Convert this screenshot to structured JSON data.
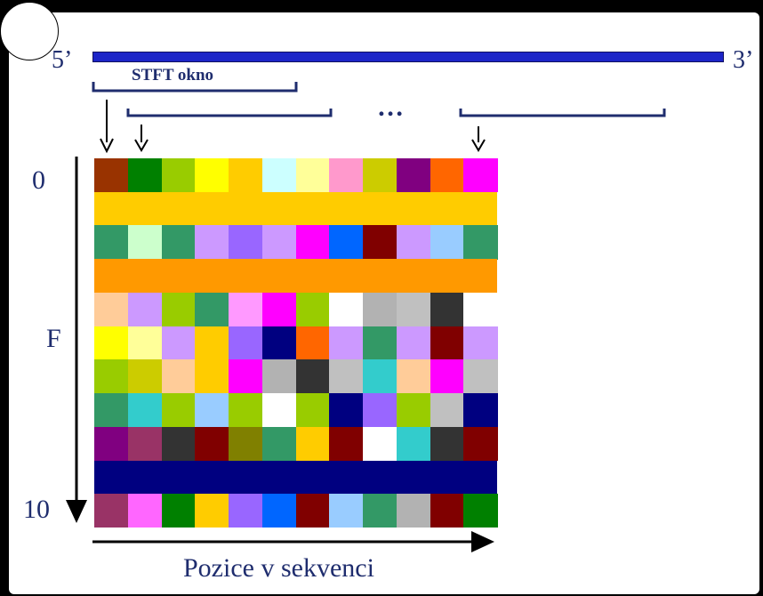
{
  "labels": {
    "five_prime": "5’",
    "three_prime": "3’",
    "stft_window": "STFT okno",
    "ellipsis": "…",
    "freq_start": "0",
    "freq_axis": "F",
    "freq_end": "10",
    "position_axis": "Pozice v sekvenci"
  },
  "colors": {
    "sequence_bar": "#1c25c8",
    "text": "#1f2d6e",
    "arrow": "#000000",
    "background": "#000000",
    "panel": "#ffffff"
  },
  "grid": {
    "columns": 12,
    "rows": [
      {
        "cells": [
          "#993300",
          "#008000",
          "#99cc00",
          "#ffff00",
          "#ffcc00",
          "#ccffff",
          "#ffff99",
          "#ff99cc",
          "#cccc00",
          "#800080",
          "#ff6600",
          "#ff00ff"
        ]
      },
      {
        "merged": "#ffcc00"
      },
      {
        "cells": [
          "#339966",
          "#ccffcc",
          "#339966",
          "#cc99ff",
          "#9966ff",
          "#cc99ff",
          "#ff00ff",
          "#0066ff",
          "#800000",
          "#cc99ff",
          "#99ccff",
          "#339966"
        ]
      },
      {
        "merged": "#ff9900"
      },
      {
        "cells": [
          "#ffcc99",
          "#cc99ff",
          "#99cc00",
          "#339966",
          "#ff99ff",
          "#ff00ff",
          "#99cc00",
          "#ffffff",
          "#b2b2b2",
          "#c0c0c0",
          "#333333",
          "#ffffff"
        ]
      },
      {
        "cells": [
          "#ffff00",
          "#ffff99",
          "#cc99ff",
          "#ffcc00",
          "#9966ff",
          "#000080",
          "#ff6600",
          "#cc99ff",
          "#339966",
          "#cc99ff",
          "#800000",
          "#cc99ff"
        ]
      },
      {
        "cells": [
          "#99cc00",
          "#cccc00",
          "#ffcc99",
          "#ffcc00",
          "#ff00ff",
          "#b2b2b2",
          "#333333",
          "#c0c0c0",
          "#33cccc",
          "#ffcc99",
          "#ff00ff",
          "#c0c0c0"
        ]
      },
      {
        "cells": [
          "#339966",
          "#33cccc",
          "#99cc00",
          "#99ccff",
          "#99cc00",
          "#ffffff",
          "#99cc00",
          "#000080",
          "#9966ff",
          "#99cc00",
          "#c0c0c0",
          "#000080"
        ]
      },
      {
        "cells": [
          "#800080",
          "#993366",
          "#333333",
          "#800000",
          "#808000",
          "#339966",
          "#ffcc00",
          "#800000",
          "#ffffff",
          "#33cccc",
          "#333333",
          "#800000"
        ]
      },
      {
        "merged": "#000080"
      },
      {
        "cells": [
          "#993366",
          "#ff66ff",
          "#008000",
          "#ffcc00",
          "#9966ff",
          "#0066ff",
          "#800000",
          "#99ccff",
          "#339966",
          "#b2b2b2",
          "#800000",
          "#008000"
        ]
      }
    ]
  }
}
